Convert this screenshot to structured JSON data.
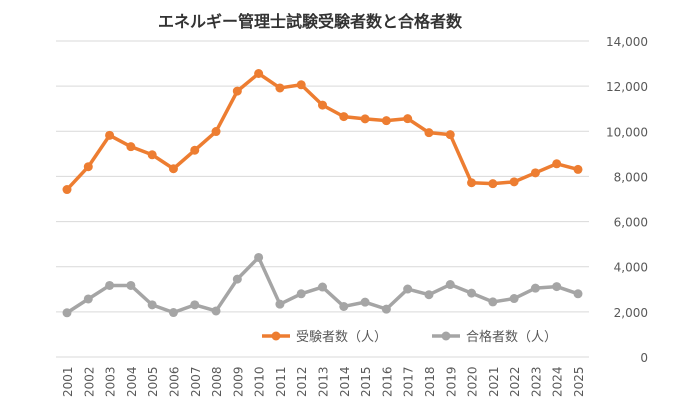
{
  "chart_data": {
    "type": "line",
    "title": "エネルギー管理士試験受験者数と合格者数",
    "x": [
      "2001",
      "2002",
      "2003",
      "2004",
      "2005",
      "2006",
      "2007",
      "2008",
      "2009",
      "2010",
      "2011",
      "2012",
      "2013",
      "2014",
      "2015",
      "2016",
      "2017",
      "2018",
      "2019",
      "2020",
      "2021",
      "2022",
      "2023",
      "2024",
      "2025"
    ],
    "series": [
      {
        "name": "受験者数（人）",
        "color": "#ED7D31",
        "values": [
          7420,
          8430,
          9820,
          9320,
          8960,
          8340,
          9160,
          9990,
          11780,
          12560,
          11920,
          12060,
          11160,
          10650,
          10550,
          10470,
          10560,
          9940,
          9850,
          7720,
          7680,
          7760,
          8160,
          8560,
          8310
        ]
      },
      {
        "name": "合格者数（人）",
        "color": "#A5A5A5",
        "values": [
          1960,
          2570,
          3170,
          3170,
          2310,
          1970,
          2310,
          2040,
          3450,
          4410,
          2340,
          2800,
          3100,
          2240,
          2430,
          2120,
          3010,
          2760,
          3210,
          2830,
          2440,
          2590,
          3050,
          3120,
          2800
        ]
      }
    ],
    "ylim": [
      0,
      14000
    ],
    "yticks": [
      "0",
      "2,000",
      "4,000",
      "6,000",
      "8,000",
      "10,000",
      "12,000",
      "14,000"
    ],
    "ytick_values": [
      0,
      2000,
      4000,
      6000,
      8000,
      10000,
      12000,
      14000
    ],
    "y_axis_side": "right",
    "grid": true,
    "legend_placement": "bottom-inside"
  }
}
